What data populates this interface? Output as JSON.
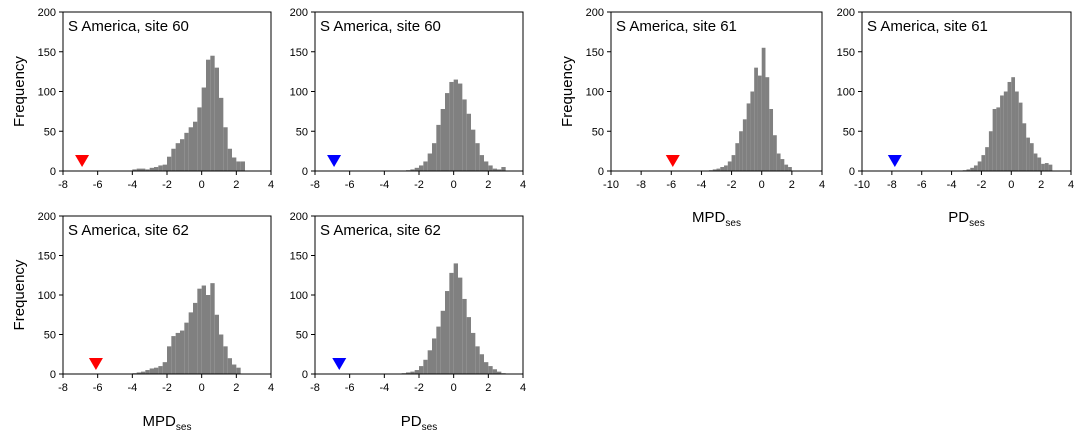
{
  "colors": {
    "bar": "#808080",
    "red_marker": "#ff0000",
    "blue_marker": "#0000ff",
    "axis": "#000000"
  },
  "axis_labels": {
    "frequency": "Frequency",
    "mpd": {
      "base": "MPD",
      "sub": "ses"
    },
    "pd": {
      "base": "PD",
      "sub": "ses"
    }
  },
  "chart_data": [
    {
      "type": "bar",
      "title": "S America, site 60",
      "xlabel": "",
      "ylabel": "Frequency",
      "xlim": [
        -8,
        4
      ],
      "ylim": [
        0,
        200
      ],
      "xticks": [
        -8,
        -6,
        -4,
        -2,
        0,
        2,
        4
      ],
      "yticks": [
        0,
        50,
        100,
        150,
        200
      ],
      "bin_width": 0.25,
      "bin_centers": [
        -3.875,
        -3.625,
        -3.375,
        -3.125,
        -2.875,
        -2.625,
        -2.375,
        -2.125,
        -1.875,
        -1.625,
        -1.375,
        -1.125,
        -0.875,
        -0.625,
        -0.375,
        -0.125,
        0.125,
        0.375,
        0.625,
        0.875,
        1.125,
        1.375,
        1.625,
        1.875,
        2.125,
        2.375
      ],
      "values": [
        2,
        3,
        3,
        2,
        4,
        5,
        7,
        8,
        18,
        28,
        35,
        40,
        48,
        55,
        62,
        80,
        105,
        140,
        145,
        130,
        92,
        55,
        28,
        17,
        12,
        12
      ],
      "marker": {
        "x": -6.9,
        "y": 8,
        "color": "red"
      }
    },
    {
      "type": "bar",
      "title": "S America, site 60",
      "xlabel": "",
      "ylabel": "",
      "xlim": [
        -8,
        4
      ],
      "ylim": [
        0,
        200
      ],
      "xticks": [
        -8,
        -6,
        -4,
        -2,
        0,
        2,
        4
      ],
      "yticks": [
        0,
        50,
        100,
        150,
        200
      ],
      "bin_width": 0.25,
      "bin_centers": [
        -2.625,
        -2.375,
        -2.125,
        -1.875,
        -1.625,
        -1.375,
        -1.125,
        -0.875,
        -0.625,
        -0.375,
        -0.125,
        0.125,
        0.375,
        0.625,
        0.875,
        1.125,
        1.375,
        1.625,
        1.875,
        2.125,
        2.375,
        2.625,
        2.875
      ],
      "values": [
        1,
        2,
        4,
        7,
        12,
        22,
        35,
        58,
        78,
        98,
        112,
        115,
        110,
        90,
        72,
        52,
        35,
        20,
        12,
        7,
        3,
        2,
        5
      ],
      "marker": {
        "x": -6.9,
        "y": 8,
        "color": "blue"
      }
    },
    {
      "type": "bar",
      "title": "S America, site 61",
      "xlabel": "MPD_ses",
      "ylabel": "Frequency",
      "xlim": [
        -10,
        4
      ],
      "ylim": [
        0,
        200
      ],
      "xticks": [
        -10,
        -8,
        -6,
        -4,
        -2,
        0,
        2,
        4
      ],
      "yticks": [
        0,
        50,
        100,
        150,
        200
      ],
      "bin_width": 0.25,
      "bin_centers": [
        -3.375,
        -3.125,
        -2.875,
        -2.625,
        -2.375,
        -2.125,
        -1.875,
        -1.625,
        -1.375,
        -1.125,
        -0.875,
        -0.625,
        -0.375,
        -0.125,
        0.125,
        0.375,
        0.625,
        0.875,
        1.125,
        1.375,
        1.625,
        1.875
      ],
      "values": [
        1,
        2,
        3,
        5,
        7,
        12,
        20,
        35,
        50,
        65,
        85,
        100,
        130,
        120,
        155,
        118,
        78,
        45,
        22,
        15,
        8,
        5
      ],
      "marker": {
        "x": -5.9,
        "y": 8,
        "color": "red"
      }
    },
    {
      "type": "bar",
      "title": "S America, site 61",
      "xlabel": "PD_ses",
      "ylabel": "",
      "xlim": [
        -10,
        4
      ],
      "ylim": [
        0,
        200
      ],
      "xticks": [
        -10,
        -8,
        -6,
        -4,
        -2,
        0,
        2,
        4
      ],
      "yticks": [
        0,
        50,
        100,
        150,
        200
      ],
      "bin_width": 0.25,
      "bin_centers": [
        -3.125,
        -2.875,
        -2.625,
        -2.375,
        -2.125,
        -1.875,
        -1.625,
        -1.375,
        -1.125,
        -0.875,
        -0.625,
        -0.375,
        -0.125,
        0.125,
        0.375,
        0.625,
        0.875,
        1.125,
        1.375,
        1.625,
        1.875,
        2.125,
        2.375,
        2.625
      ],
      "values": [
        1,
        2,
        4,
        7,
        12,
        20,
        30,
        50,
        78,
        80,
        95,
        100,
        112,
        118,
        100,
        86,
        60,
        42,
        35,
        22,
        17,
        9,
        10,
        8
      ],
      "marker": {
        "x": -7.8,
        "y": 8,
        "color": "blue"
      }
    },
    {
      "type": "bar",
      "title": "S America, site 62",
      "xlabel": "MPD_ses",
      "ylabel": "Frequency",
      "xlim": [
        -8,
        4
      ],
      "ylim": [
        0,
        200
      ],
      "xticks": [
        -8,
        -6,
        -4,
        -2,
        0,
        2,
        4
      ],
      "yticks": [
        0,
        50,
        100,
        150,
        200
      ],
      "bin_width": 0.25,
      "bin_centers": [
        -3.875,
        -3.625,
        -3.375,
        -3.125,
        -2.875,
        -2.625,
        -2.375,
        -2.125,
        -1.875,
        -1.625,
        -1.375,
        -1.125,
        -0.875,
        -0.625,
        -0.375,
        -0.125,
        0.125,
        0.375,
        0.625,
        0.875,
        1.125,
        1.375,
        1.625,
        1.875,
        2.125
      ],
      "values": [
        1,
        2,
        3,
        5,
        7,
        8,
        10,
        15,
        35,
        48,
        52,
        55,
        65,
        78,
        90,
        108,
        112,
        100,
        115,
        75,
        50,
        35,
        20,
        12,
        8
      ],
      "marker": {
        "x": -6.1,
        "y": 8,
        "color": "red"
      }
    },
    {
      "type": "bar",
      "title": "S America, site 62",
      "xlabel": "PD_ses",
      "ylabel": "",
      "xlim": [
        -8,
        4
      ],
      "ylim": [
        0,
        200
      ],
      "xticks": [
        -8,
        -6,
        -4,
        -2,
        0,
        2,
        4
      ],
      "yticks": [
        0,
        50,
        100,
        150,
        200
      ],
      "bin_width": 0.25,
      "bin_centers": [
        -2.875,
        -2.625,
        -2.375,
        -2.125,
        -1.875,
        -1.625,
        -1.375,
        -1.125,
        -0.875,
        -0.625,
        -0.375,
        -0.125,
        0.125,
        0.375,
        0.625,
        0.875,
        1.125,
        1.375,
        1.625,
        1.875,
        2.125,
        2.375,
        2.625,
        2.875
      ],
      "values": [
        1,
        2,
        3,
        5,
        10,
        18,
        30,
        45,
        60,
        80,
        105,
        128,
        140,
        122,
        95,
        72,
        52,
        35,
        25,
        15,
        10,
        6,
        3,
        1
      ],
      "marker": {
        "x": -6.6,
        "y": 8,
        "color": "blue"
      }
    }
  ]
}
